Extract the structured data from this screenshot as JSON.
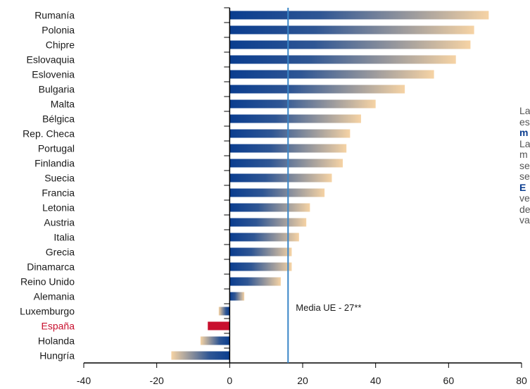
{
  "chart_data": {
    "type": "bar",
    "orientation": "horizontal",
    "categories": [
      "Rumanía",
      "Polonia",
      "Chipre",
      "Eslovaquia",
      "Eslovenia",
      "Bulgaria",
      "Malta",
      "Bélgica",
      "Rep. Checa",
      "Portugal",
      "Finlandia",
      "Suecia",
      "Francia",
      "Letonia",
      "Austria",
      "Italia",
      "Grecia",
      "Dinamarca",
      "Reino Unido",
      "Alemania",
      "Luxemburgo",
      "España",
      "Holanda",
      "Hungría"
    ],
    "values": [
      71,
      67,
      66,
      62,
      56,
      48,
      40,
      36,
      33,
      32,
      31,
      28,
      26,
      22,
      21,
      19,
      17,
      17,
      14,
      4,
      -3,
      -6,
      -8,
      -16
    ],
    "highlight_category": "España",
    "xlim": [
      -40,
      80
    ],
    "xticks": [
      "-40",
      "-20",
      "0",
      "20",
      "40",
      "60",
      "80"
    ],
    "reference_line": {
      "value": 16,
      "label": "Media UE - 27**"
    },
    "colors": {
      "bar_start": "#0a3d8f",
      "bar_end": "#f6d3a4",
      "highlight": "#c8102e",
      "reference": "#3a86c8",
      "axis": "#000000"
    }
  },
  "side_text": {
    "lines": [
      {
        "text": "La",
        "bold": false
      },
      {
        "text": "es",
        "bold": false
      },
      {
        "text": "m",
        "bold": true
      },
      {
        "text": "La",
        "bold": false
      },
      {
        "text": "m",
        "bold": false
      },
      {
        "text": "se",
        "bold": false
      },
      {
        "text": "se",
        "bold": false
      },
      {
        "text": "E",
        "bold": true
      },
      {
        "text": "ve",
        "bold": false
      },
      {
        "text": "de",
        "bold": false
      },
      {
        "text": "va",
        "bold": false
      }
    ]
  }
}
